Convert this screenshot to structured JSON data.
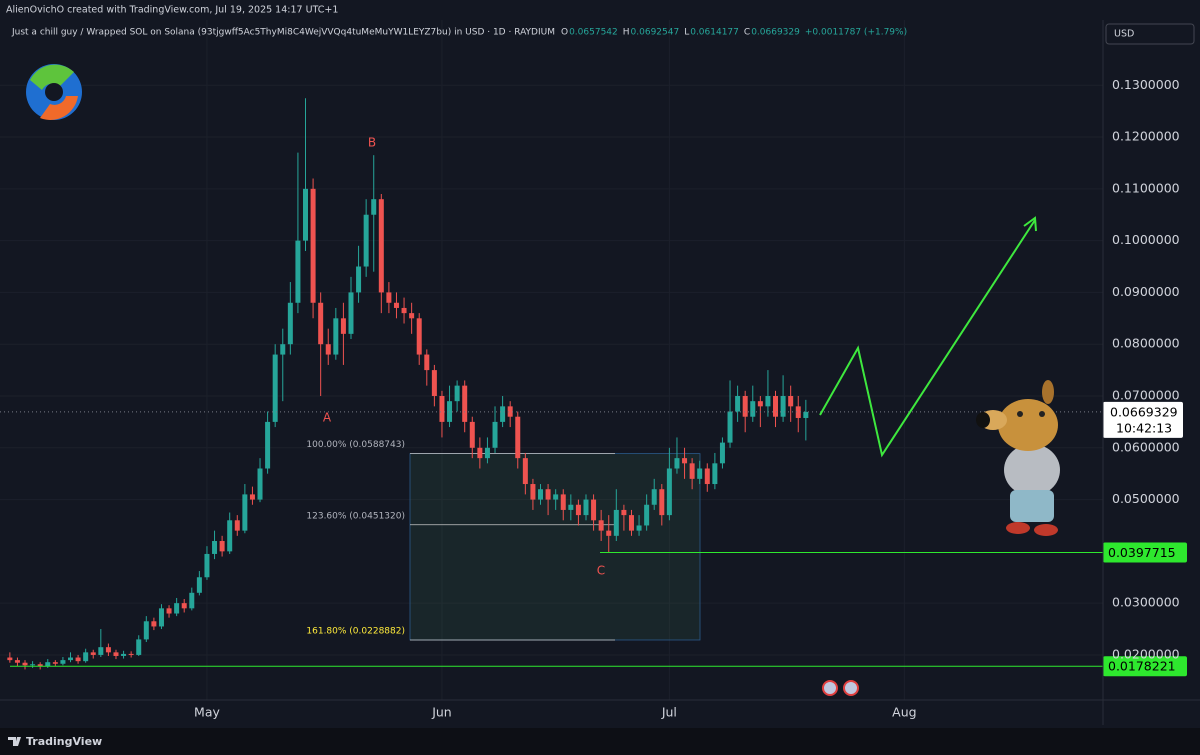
{
  "header": {
    "author_line": "AlienOvichO created with TradingView.com, Jul 19, 2025 14:17 UTC+1",
    "currency": "USD",
    "brand": "TradingView"
  },
  "chart_data": {
    "type": "candlestick",
    "title": "Just a chill guy / Wrapped SOL on Solana (93tjgwff5Ac5ThyMi8C4WejVVQq4tuMeMuYW1LEYZ7bu) in USD · 1D · RAYDIUM",
    "ohlc_labels": [
      "O",
      "H",
      "L",
      "C"
    ],
    "change": "+0.0011787 (+1.79%)",
    "up_color": "#26a69a",
    "down_color": "#ef5350",
    "open": [
      0.0195,
      0.019,
      0.0185,
      0.018,
      0.0182,
      0.0178,
      0.0186,
      0.0183,
      0.019,
      0.0195,
      0.0188,
      0.0205,
      0.02,
      0.0215,
      0.0205,
      0.0198,
      0.0202,
      0.02,
      0.023,
      0.0265,
      0.0255,
      0.029,
      0.028,
      0.03,
      0.029,
      0.032,
      0.035,
      0.0395,
      0.042,
      0.04,
      0.046,
      0.044,
      0.051,
      0.05,
      0.056,
      0.065,
      0.078,
      0.08,
      0.088,
      0.1,
      0.11,
      0.088,
      0.08,
      0.078,
      0.085,
      0.082,
      0.09,
      0.095,
      0.105,
      0.108,
      0.09,
      0.088,
      0.087,
      0.086,
      0.085,
      0.078,
      0.075,
      0.07,
      0.065,
      0.069,
      0.072,
      0.065,
      0.06,
      0.058,
      0.06,
      0.065,
      0.068,
      0.066,
      0.058,
      0.053,
      0.05,
      0.052,
      0.05,
      0.051,
      0.048,
      0.049,
      0.047,
      0.05,
      0.046,
      0.044,
      0.043,
      0.048,
      0.047,
      0.044,
      0.045,
      0.049,
      0.052,
      0.047,
      0.056,
      0.058,
      0.057,
      0.054,
      0.056,
      0.053,
      0.057,
      0.061,
      0.067,
      0.07,
      0.066,
      0.069,
      0.068,
      0.07,
      0.066,
      0.07,
      0.068,
      0.0657542
    ],
    "high": [
      0.0205,
      0.0195,
      0.019,
      0.0188,
      0.0186,
      0.0192,
      0.019,
      0.0196,
      0.0205,
      0.02,
      0.0212,
      0.021,
      0.025,
      0.0222,
      0.021,
      0.0208,
      0.0207,
      0.0238,
      0.0275,
      0.0272,
      0.0298,
      0.0296,
      0.031,
      0.0308,
      0.033,
      0.0362,
      0.041,
      0.044,
      0.043,
      0.0475,
      0.047,
      0.053,
      0.0525,
      0.058,
      0.067,
      0.08,
      0.083,
      0.092,
      0.117,
      0.1275,
      0.112,
      0.09,
      0.083,
      0.087,
      0.088,
      0.093,
      0.099,
      0.108,
      0.1165,
      0.109,
      0.092,
      0.09,
      0.089,
      0.088,
      0.086,
      0.079,
      0.076,
      0.071,
      0.072,
      0.073,
      0.073,
      0.066,
      0.062,
      0.062,
      0.068,
      0.07,
      0.069,
      0.067,
      0.059,
      0.054,
      0.053,
      0.053,
      0.052,
      0.052,
      0.051,
      0.05,
      0.051,
      0.051,
      0.048,
      0.047,
      0.052,
      0.049,
      0.048,
      0.047,
      0.051,
      0.054,
      0.053,
      0.06,
      0.062,
      0.06,
      0.058,
      0.0575,
      0.057,
      0.059,
      0.062,
      0.073,
      0.072,
      0.071,
      0.072,
      0.07,
      0.075,
      0.071,
      0.074,
      0.072,
      0.07,
      0.0692547
    ],
    "low": [
      0.0185,
      0.0178,
      0.0172,
      0.0175,
      0.0172,
      0.0175,
      0.0178,
      0.018,
      0.0186,
      0.0183,
      0.0185,
      0.0193,
      0.0196,
      0.0198,
      0.0192,
      0.0193,
      0.0195,
      0.0198,
      0.0225,
      0.0248,
      0.025,
      0.0272,
      0.0275,
      0.0282,
      0.0286,
      0.0315,
      0.0345,
      0.0385,
      0.039,
      0.0395,
      0.043,
      0.0435,
      0.049,
      0.0495,
      0.055,
      0.064,
      0.069,
      0.078,
      0.086,
      0.098,
      0.085,
      0.07,
      0.076,
      0.077,
      0.076,
      0.081,
      0.088,
      0.093,
      0.094,
      0.086,
      0.086,
      0.085,
      0.084,
      0.082,
      0.076,
      0.072,
      0.068,
      0.062,
      0.064,
      0.067,
      0.063,
      0.058,
      0.056,
      0.057,
      0.059,
      0.064,
      0.064,
      0.056,
      0.051,
      0.048,
      0.049,
      0.047,
      0.048,
      0.046,
      0.046,
      0.045,
      0.046,
      0.044,
      0.042,
      0.0398,
      0.042,
      0.044,
      0.043,
      0.043,
      0.044,
      0.048,
      0.045,
      0.046,
      0.055,
      0.054,
      0.052,
      0.053,
      0.0515,
      0.052,
      0.056,
      0.06,
      0.065,
      0.063,
      0.065,
      0.064,
      0.066,
      0.064,
      0.065,
      0.065,
      0.063,
      0.0614177
    ],
    "close": [
      0.019,
      0.0185,
      0.018,
      0.0182,
      0.0178,
      0.0186,
      0.0183,
      0.019,
      0.0195,
      0.0188,
      0.0205,
      0.02,
      0.0215,
      0.0205,
      0.0198,
      0.0202,
      0.02,
      0.023,
      0.0265,
      0.0255,
      0.029,
      0.028,
      0.03,
      0.029,
      0.032,
      0.035,
      0.0395,
      0.042,
      0.04,
      0.046,
      0.044,
      0.051,
      0.05,
      0.056,
      0.065,
      0.078,
      0.08,
      0.088,
      0.1,
      0.11,
      0.088,
      0.08,
      0.078,
      0.085,
      0.082,
      0.09,
      0.095,
      0.105,
      0.108,
      0.09,
      0.088,
      0.087,
      0.086,
      0.085,
      0.078,
      0.075,
      0.07,
      0.065,
      0.069,
      0.072,
      0.065,
      0.06,
      0.058,
      0.06,
      0.065,
      0.068,
      0.066,
      0.058,
      0.053,
      0.05,
      0.052,
      0.05,
      0.051,
      0.048,
      0.049,
      0.047,
      0.05,
      0.046,
      0.044,
      0.043,
      0.048,
      0.047,
      0.044,
      0.045,
      0.049,
      0.052,
      0.047,
      0.056,
      0.058,
      0.057,
      0.054,
      0.056,
      0.053,
      0.057,
      0.061,
      0.067,
      0.07,
      0.066,
      0.069,
      0.068,
      0.07,
      0.066,
      0.07,
      0.068,
      0.0657542,
      0.0669329
    ],
    "xlim": [
      -1.3,
      144.2
    ],
    "xticks": [
      {
        "value": 26,
        "label": "May"
      },
      {
        "value": 57,
        "label": "Jun"
      },
      {
        "value": 87,
        "label": "Jul"
      },
      {
        "value": 118,
        "label": "Aug"
      }
    ],
    "ylim": [
      0.0113,
      0.1426
    ],
    "yticks": [
      {
        "value": 0.02,
        "label": "0.0200000"
      },
      {
        "value": 0.03,
        "label": "0.0300000"
      },
      {
        "value": 0.05,
        "label": "0.0500000"
      },
      {
        "value": 0.06,
        "label": "0.0600000"
      },
      {
        "value": 0.07,
        "label": "0.0700000"
      },
      {
        "value": 0.08,
        "label": "0.0800000"
      },
      {
        "value": 0.09,
        "label": "0.0900000"
      },
      {
        "value": 0.1,
        "label": "0.1000000"
      },
      {
        "value": 0.11,
        "label": "0.1100000"
      },
      {
        "value": 0.12,
        "label": "0.1200000"
      },
      {
        "value": 0.13,
        "label": "0.1300000"
      }
    ],
    "grid": true,
    "last_price_countdown": "10:42:13",
    "levels": [
      {
        "value": 0.0397715,
        "color": "#2ee82e"
      },
      {
        "value": 0.0178221,
        "color": "#2ee82e"
      }
    ],
    "fib_levels": [
      {
        "label": "100.00% (0.0588743)",
        "value": 0.0588743,
        "color": "#b2b5be"
      },
      {
        "label": "123.60% (0.0451320)",
        "value": 0.045132,
        "color": "#b2b5be"
      },
      {
        "label": "161.80% (0.0228882)",
        "value": 0.0228882,
        "color": "#ffeb3b"
      }
    ],
    "wave_labels": [
      "A",
      "B",
      "C"
    ]
  }
}
